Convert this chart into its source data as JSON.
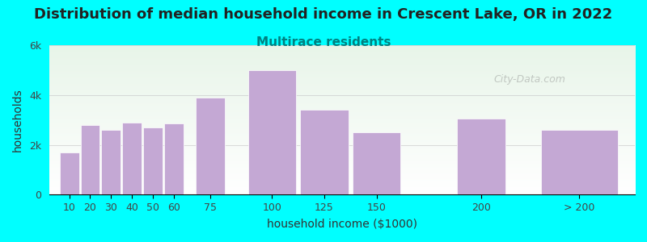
{
  "title": "Distribution of median household income in Crescent Lake, OR in 2022",
  "subtitle": "Multirace residents",
  "xlabel": "household income ($1000)",
  "ylabel": "households",
  "background_color": "#00FFFF",
  "plot_bg_gradient_top": "#e8f5e9",
  "plot_bg_gradient_bottom": "#ffffff",
  "bar_color": "#C4A8D4",
  "bar_edge_color": "#ffffff",
  "watermark": "City-Data.com",
  "categories": [
    "10",
    "20",
    "30",
    "40",
    "50",
    "60",
    "75",
    "100",
    "125",
    "150",
    "200",
    "> 200"
  ],
  "values": [
    1700,
    2800,
    2600,
    2900,
    2700,
    2850,
    3900,
    5000,
    3400,
    2500,
    3050,
    2600
  ],
  "bar_widths": [
    1,
    1,
    1,
    1,
    1,
    1,
    1,
    1,
    1,
    1,
    1,
    1
  ],
  "bar_positions": [
    10,
    20,
    30,
    40,
    50,
    60,
    75,
    100,
    125,
    150,
    200,
    240
  ],
  "bar_actual_widths": [
    10,
    10,
    10,
    10,
    10,
    10,
    15,
    25,
    25,
    25,
    25,
    40
  ],
  "ylim": [
    0,
    6000
  ],
  "yticks": [
    0,
    2000,
    4000,
    6000
  ],
  "ytick_labels": [
    "0",
    "2k",
    "4k",
    "6k"
  ],
  "xtick_labels": [
    "10",
    "20",
    "30",
    "40",
    "50",
    "60",
    "75",
    "100",
    "125",
    "150",
    "200",
    "> 200"
  ],
  "title_fontsize": 13,
  "subtitle_fontsize": 11,
  "subtitle_color": "#008080",
  "axis_label_fontsize": 10,
  "tick_fontsize": 9,
  "figsize": [
    8.0,
    3.0
  ],
  "dpi": 100
}
